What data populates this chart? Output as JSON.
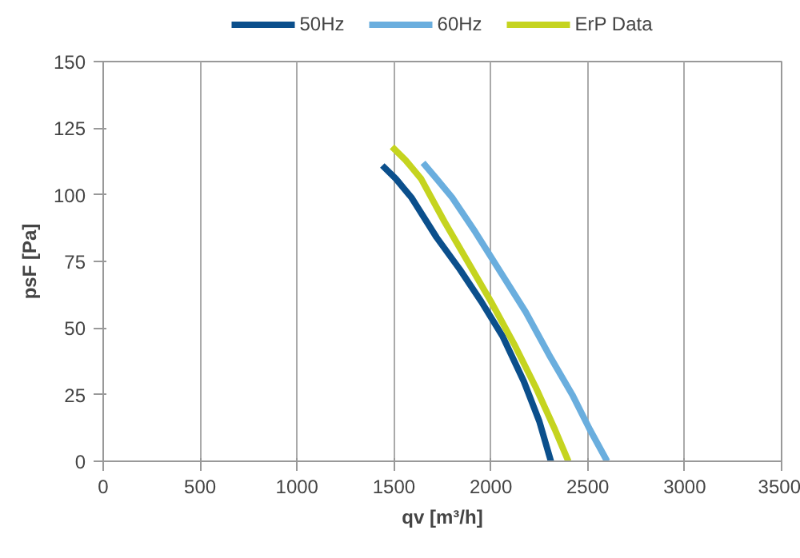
{
  "chart_data": {
    "type": "line",
    "xlabel": "qv [m³/h]",
    "ylabel": "psF [Pa]",
    "xlim": [
      0,
      3500
    ],
    "ylim": [
      0,
      150
    ],
    "xticks": [
      0,
      500,
      1000,
      1500,
      2000,
      2500,
      3000,
      3500
    ],
    "yticks": [
      0,
      25,
      50,
      75,
      100,
      125,
      150
    ],
    "grid": "x",
    "legend": "top",
    "line_style": "solid",
    "series": [
      {
        "name": "50Hz",
        "color": "#0b4f8c",
        "x": [
          1440,
          1510,
          1590,
          1720,
          1840,
          1950,
          2060,
          2170,
          2250,
          2310
        ],
        "values": [
          111,
          106,
          99,
          84,
          72,
          60,
          47,
          30,
          15,
          0
        ]
      },
      {
        "name": "60Hz",
        "color": "#6aaede",
        "x": [
          1650,
          1720,
          1800,
          1920,
          2050,
          2180,
          2300,
          2420,
          2510,
          2600
        ],
        "values": [
          112,
          106,
          99,
          86,
          71,
          56,
          40,
          25,
          12,
          0
        ]
      },
      {
        "name": "ErP Data",
        "color": "#c5d41f",
        "x": [
          1490,
          1560,
          1640,
          1760,
          1880,
          2000,
          2120,
          2230,
          2330,
          2400
        ],
        "values": [
          118,
          113,
          106,
          90,
          75,
          60,
          44,
          28,
          12,
          0
        ]
      }
    ]
  }
}
